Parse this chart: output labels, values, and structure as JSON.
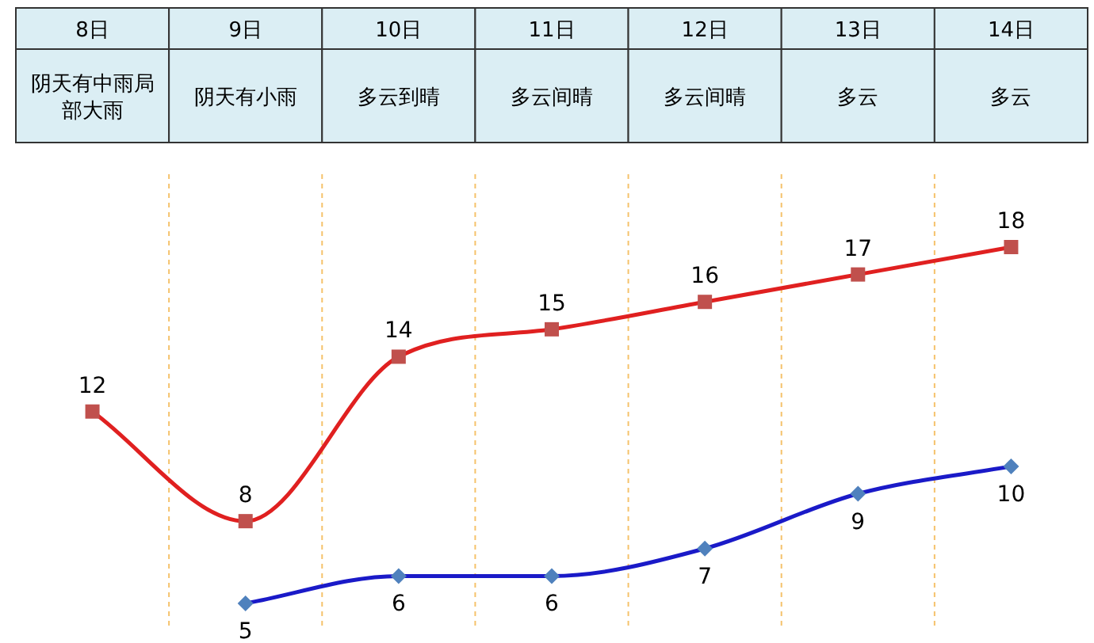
{
  "chart_data": {
    "type": "line",
    "categories": [
      "8日",
      "9日",
      "10日",
      "11日",
      "12日",
      "13日",
      "14日"
    ],
    "annotations": [
      "阴天有中雨局部大雨",
      "阴天有小雨",
      "多云到晴",
      "多云间晴",
      "多云间晴",
      "多云",
      "多云"
    ],
    "series": [
      {
        "color": "#e02020",
        "marker": "square",
        "values": [
          12,
          8,
          14,
          15,
          16,
          17,
          18
        ]
      },
      {
        "color": "#1a1ac8",
        "marker": "diamond",
        "values": [
          null,
          5,
          6,
          6,
          7,
          9,
          10
        ]
      }
    ],
    "data_labels": true,
    "grid": "x",
    "line_style": "solid"
  }
}
